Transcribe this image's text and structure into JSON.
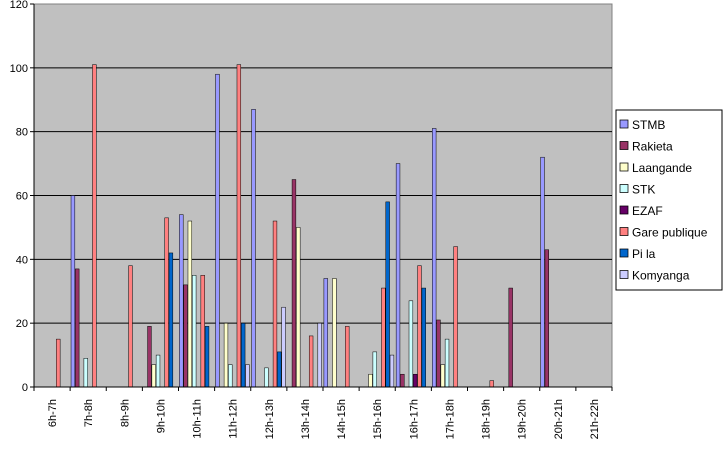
{
  "chart_data": {
    "type": "bar",
    "title": "",
    "xlabel": "",
    "ylabel": "",
    "ylim": [
      0,
      120
    ],
    "yticks": [
      0,
      20,
      40,
      60,
      80,
      100,
      120
    ],
    "grid": "horizontal",
    "legend_position": "right",
    "plot_background": "#c0c0c0",
    "categories": [
      "6h-7h",
      "7h-8h",
      "8h-9h",
      "9h-10h",
      "10h-11h",
      "11h-12h",
      "12h-13h",
      "13h-14h",
      "14h-15h",
      "15h-16h",
      "16h-17h",
      "17h-18h",
      "18h-19h",
      "19h-20h",
      "20h-21h",
      "21h-22h"
    ],
    "series": [
      {
        "name": "STMB",
        "color": "#9999ff",
        "values": [
          0,
          60,
          0,
          0,
          54,
          98,
          87,
          0,
          34,
          0,
          70,
          81,
          0,
          0,
          72,
          0
        ]
      },
      {
        "name": "Rakieta",
        "color": "#993366",
        "values": [
          0,
          37,
          0,
          19,
          32,
          0,
          0,
          65,
          0,
          0,
          4,
          21,
          0,
          31,
          43,
          0
        ]
      },
      {
        "name": "Laangande",
        "color": "#ffffcc",
        "values": [
          0,
          0,
          0,
          7,
          52,
          20,
          0,
          50,
          34,
          4,
          0,
          7,
          0,
          0,
          0,
          0
        ]
      },
      {
        "name": "STK",
        "color": "#ccffff",
        "values": [
          0,
          9,
          0,
          10,
          35,
          7,
          6,
          0,
          0,
          11,
          27,
          15,
          0,
          0,
          0,
          0
        ]
      },
      {
        "name": "EZAF",
        "color": "#660066",
        "values": [
          0,
          0,
          0,
          0,
          0,
          0,
          0,
          0,
          0,
          0,
          4,
          0,
          0,
          0,
          0,
          0
        ]
      },
      {
        "name": "Gare publique",
        "color": "#ff8080",
        "values": [
          15,
          101,
          38,
          53,
          35,
          101,
          52,
          16,
          19,
          31,
          38,
          44,
          2,
          0,
          0,
          0
        ]
      },
      {
        "name": "Pi  la",
        "color": "#0066cc",
        "values": [
          0,
          0,
          0,
          42,
          19,
          20,
          11,
          0,
          0,
          58,
          31,
          0,
          0,
          0,
          0,
          0
        ]
      },
      {
        "name": "Komyanga",
        "color": "#ccccff",
        "values": [
          0,
          0,
          0,
          0,
          0,
          7,
          25,
          20,
          0,
          10,
          0,
          0,
          0,
          0,
          0,
          0
        ]
      }
    ]
  }
}
